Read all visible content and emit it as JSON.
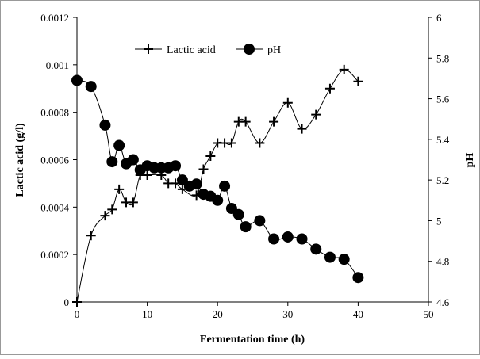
{
  "chart_data": {
    "type": "line",
    "xlabel": "Fermentation time (h)",
    "ylabel": "Lactic acid (g/l)",
    "y2label": "pH",
    "xlim": [
      0,
      50
    ],
    "ylim": [
      0,
      0.0012
    ],
    "y2lim": [
      4.6,
      6
    ],
    "xticks": [
      "0",
      "10",
      "20",
      "30",
      "40",
      "50"
    ],
    "yticks": [
      "0",
      "0.0002",
      "0.0004",
      "0.0006",
      "0.0008",
      "0.001",
      "0.0012"
    ],
    "y2ticks": [
      "4.6",
      "4.8",
      "5",
      "5.2",
      "5.4",
      "5.6",
      "5.8",
      "6"
    ],
    "grid": false,
    "legend_position": "top",
    "series": [
      {
        "name": "Lactic acid",
        "axis": "left",
        "marker": "plus",
        "x": [
          0,
          2,
          4,
          5,
          6,
          7,
          8,
          9,
          10,
          12,
          13,
          14,
          15,
          17,
          18,
          19,
          20,
          21,
          22,
          23,
          24,
          26,
          28,
          30,
          32,
          34,
          36,
          38,
          40
        ],
        "y": [
          0,
          0.00028,
          0.000364,
          0.00039,
          0.000475,
          0.00042,
          0.00042,
          0.000535,
          0.000535,
          0.000535,
          0.0005,
          0.0005,
          0.000475,
          0.00045,
          0.00056,
          0.000615,
          0.00067,
          0.00067,
          0.00067,
          0.00076,
          0.00076,
          0.00067,
          0.00076,
          0.00084,
          0.00073,
          0.00079,
          0.0009,
          0.00098,
          0.00093
        ]
      },
      {
        "name": "pH",
        "axis": "right",
        "marker": "circle",
        "x": [
          0,
          2,
          4,
          5,
          6,
          7,
          8,
          9,
          10,
          11,
          12,
          13,
          14,
          15,
          16,
          17,
          18,
          19,
          20,
          21,
          22,
          23,
          24,
          26,
          28,
          30,
          32,
          34,
          36,
          38,
          40
        ],
        "y": [
          5.69,
          5.66,
          5.47,
          5.29,
          5.37,
          5.28,
          5.3,
          5.25,
          5.27,
          5.26,
          5.26,
          5.26,
          5.27,
          5.2,
          5.17,
          5.18,
          5.13,
          5.12,
          5.1,
          5.17,
          5.06,
          5.03,
          4.97,
          5.0,
          4.91,
          4.92,
          4.91,
          4.86,
          4.82,
          4.81,
          4.72
        ]
      }
    ]
  }
}
